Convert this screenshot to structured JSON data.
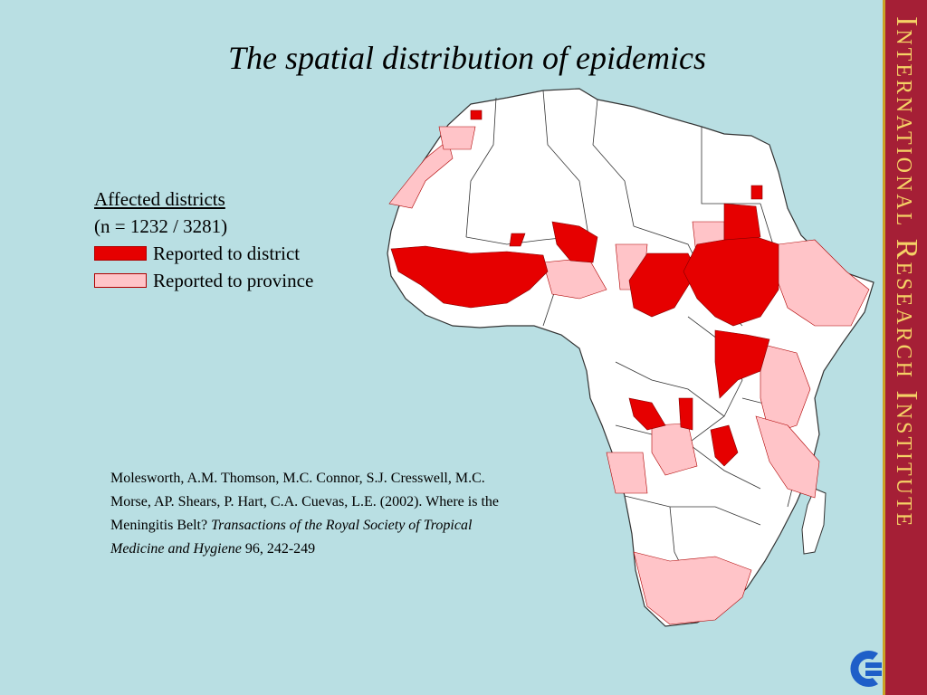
{
  "title": "The spatial distribution of epidemics",
  "legend": {
    "heading": "Affected districts",
    "count": "(n = 1232 / 3281)",
    "items": [
      {
        "label": "Reported to district",
        "color": "#e60000"
      },
      {
        "label": "Reported to province",
        "color": "#ffc4c8"
      }
    ]
  },
  "citation": {
    "authors": "Molesworth, A.M. Thomson, M.C. Connor, S.J. Cresswell, M.C. Morse, AP. Shears, P. Hart, C.A. Cuevas, L.E. (2002). Where is the Meningitis Belt?",
    "journal": "Transactions of the Royal Society of Tropical Medicine and Hygiene",
    "ref": "96, 242-249"
  },
  "sidebar": {
    "label": "International Research Institute"
  },
  "colors": {
    "background": "#b9dfe3",
    "district": "#e60000",
    "province": "#ffc4c8",
    "sidebar": "#a51f36",
    "sidebar_text": "#f5d266",
    "logo": "#1f5fc8"
  }
}
